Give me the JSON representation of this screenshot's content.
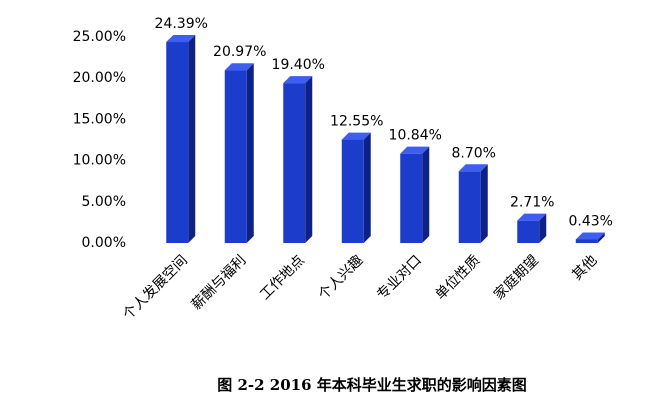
{
  "chart_data": {
    "type": "bar3d",
    "caption": "图 2-2   2016 年本科毕业生求职的影响因素图",
    "categories": [
      "个人发展空间",
      "薪酬与福利",
      "工作地点",
      "个人兴趣",
      "专业对口",
      "单位性质",
      "家庭期望",
      "其他"
    ],
    "values": [
      24.39,
      20.97,
      19.4,
      12.55,
      10.84,
      8.7,
      2.71,
      0.43
    ],
    "value_labels": [
      "24.39%",
      "20.97%",
      "19.40%",
      "12.55%",
      "10.84%",
      "8.70%",
      "2.71%",
      "0.43%"
    ],
    "color": "#1c3ccc",
    "ylim": [
      0,
      25
    ],
    "yticks": [
      {
        "value": 0,
        "label": "0.00%"
      },
      {
        "value": 5,
        "label": "5.00%"
      },
      {
        "value": 10,
        "label": "10.00%"
      },
      {
        "value": 15,
        "label": "15.00%"
      },
      {
        "value": 20,
        "label": "20.00%"
      },
      {
        "value": 25,
        "label": "25.00%"
      }
    ],
    "grid": false
  }
}
